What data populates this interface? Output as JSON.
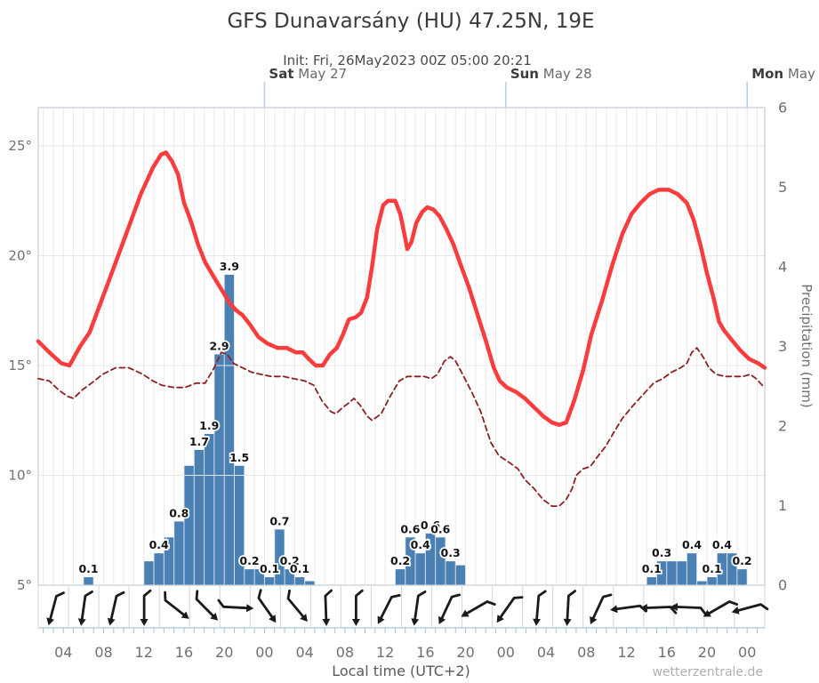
{
  "title": "GFS Dunavarsány (HU) 47.25N, 19E",
  "subtitle": "Init: Fri, 26May2023 00Z 05:00 20:21",
  "watermark": "wetterzentrale.de",
  "x_axis_label": "Local time (UTC+2)",
  "y_right_label": "Precipitation (mm)",
  "colors": {
    "temperature": "#fa3c3c",
    "dewpoint": "#8b2020",
    "precip_bar": "#4a81b4",
    "grid": "#e8e8e8",
    "frame": "#c5ccd6",
    "day_line": "#b9cfe8",
    "axis_line": "#b9cfe8",
    "hour_tick": "#aebfd4",
    "strip_sep": "#cfd6de",
    "wind_arrow": "#1a1a1a"
  },
  "day_markers": [
    {
      "t": 24,
      "day": "Sat",
      "date": " May 27"
    },
    {
      "t": 48,
      "day": "Sun",
      "date": " May 28"
    },
    {
      "t": 72,
      "day": "Mon",
      "date": " May"
    }
  ],
  "x_ticks": [
    {
      "t": 4,
      "label": "04"
    },
    {
      "t": 8,
      "label": "08"
    },
    {
      "t": 12,
      "label": "12"
    },
    {
      "t": 16,
      "label": "16"
    },
    {
      "t": 20,
      "label": "20"
    },
    {
      "t": 24,
      "label": "00"
    },
    {
      "t": 28,
      "label": "04"
    },
    {
      "t": 32,
      "label": "08"
    },
    {
      "t": 36,
      "label": "12"
    },
    {
      "t": 40,
      "label": "16"
    },
    {
      "t": 44,
      "label": "20"
    },
    {
      "t": 48,
      "label": "00"
    },
    {
      "t": 52,
      "label": "04"
    },
    {
      "t": 56,
      "label": "08"
    },
    {
      "t": 60,
      "label": "12"
    },
    {
      "t": 64,
      "label": "16"
    },
    {
      "t": 68,
      "label": "20"
    },
    {
      "t": 72,
      "label": "00"
    }
  ],
  "y_left_ticks": [
    {
      "v": 25,
      "label": "25°"
    },
    {
      "v": 20,
      "label": "20°"
    },
    {
      "v": 15,
      "label": "15°"
    },
    {
      "v": 10,
      "label": "10°"
    },
    {
      "v": 5,
      "label": "5°"
    }
  ],
  "y_right_ticks": [
    {
      "v": 6,
      "label": "6"
    },
    {
      "v": 5,
      "label": "5"
    },
    {
      "v": 4,
      "label": "4"
    },
    {
      "v": 3,
      "label": "3"
    },
    {
      "v": 2,
      "label": "2"
    },
    {
      "v": 1,
      "label": "1"
    },
    {
      "v": 0,
      "label": "0"
    }
  ],
  "chart_data": {
    "type": "line+bar",
    "time_unit": "hours since Fri 26May2023 00:00 local (UTC+2)",
    "t_range": [
      1.5,
      73.75
    ],
    "temp_axis_range": [
      5,
      26.74
    ],
    "precip_axis_range": [
      0,
      6
    ],
    "grid_hours": 1,
    "temp_gridlines": [
      10,
      15,
      20,
      25
    ],
    "series": [
      {
        "name": "temperature",
        "style": "solid",
        "points": [
          [
            1.5,
            16.1
          ],
          [
            2.6,
            15.6
          ],
          [
            3.8,
            15.1
          ],
          [
            4.6,
            15.0
          ],
          [
            5.7,
            15.9
          ],
          [
            6.6,
            16.5
          ],
          [
            8.4,
            18.7
          ],
          [
            10.1,
            20.8
          ],
          [
            11.7,
            22.8
          ],
          [
            12.9,
            24.0
          ],
          [
            13.7,
            24.6
          ],
          [
            14.2,
            24.7
          ],
          [
            14.8,
            24.3
          ],
          [
            15.4,
            23.7
          ],
          [
            16.0,
            22.4
          ],
          [
            16.5,
            21.8
          ],
          [
            16.8,
            21.4
          ],
          [
            17.4,
            20.5
          ],
          [
            18.1,
            19.7
          ],
          [
            19.0,
            19.0
          ],
          [
            19.8,
            18.4
          ],
          [
            20.6,
            17.8
          ],
          [
            21.2,
            17.5
          ],
          [
            21.8,
            17.3
          ],
          [
            22.5,
            16.9
          ],
          [
            23.4,
            16.3
          ],
          [
            24.3,
            16.0
          ],
          [
            25.3,
            15.8
          ],
          [
            26.2,
            15.8
          ],
          [
            27.1,
            15.6
          ],
          [
            27.8,
            15.6
          ],
          [
            28.4,
            15.3
          ],
          [
            29.1,
            15.0
          ],
          [
            29.8,
            15.0
          ],
          [
            30.5,
            15.5
          ],
          [
            31.2,
            15.8
          ],
          [
            31.8,
            16.4
          ],
          [
            32.4,
            17.1
          ],
          [
            33.1,
            17.2
          ],
          [
            33.6,
            17.4
          ],
          [
            34.2,
            18.1
          ],
          [
            34.7,
            19.5
          ],
          [
            35.2,
            21.2
          ],
          [
            35.8,
            22.3
          ],
          [
            36.3,
            22.5
          ],
          [
            37.0,
            22.5
          ],
          [
            37.5,
            21.9
          ],
          [
            38.0,
            20.8
          ],
          [
            38.2,
            20.3
          ],
          [
            38.6,
            20.6
          ],
          [
            39.1,
            21.5
          ],
          [
            39.7,
            22.0
          ],
          [
            40.2,
            22.2
          ],
          [
            40.8,
            22.1
          ],
          [
            41.4,
            21.8
          ],
          [
            42.1,
            21.2
          ],
          [
            42.8,
            20.5
          ],
          [
            43.5,
            19.6
          ],
          [
            44.3,
            18.6
          ],
          [
            45.2,
            17.3
          ],
          [
            46.1,
            16.0
          ],
          [
            46.8,
            14.9
          ],
          [
            47.4,
            14.3
          ],
          [
            48.1,
            14.0
          ],
          [
            49.0,
            13.8
          ],
          [
            49.9,
            13.5
          ],
          [
            50.8,
            13.1
          ],
          [
            51.7,
            12.7
          ],
          [
            52.6,
            12.4
          ],
          [
            53.3,
            12.3
          ],
          [
            54.0,
            12.4
          ],
          [
            54.8,
            13.4
          ],
          [
            55.7,
            14.8
          ],
          [
            56.5,
            16.4
          ],
          [
            57.6,
            18.0
          ],
          [
            58.6,
            19.6
          ],
          [
            59.6,
            21.0
          ],
          [
            60.5,
            21.9
          ],
          [
            61.4,
            22.4
          ],
          [
            62.3,
            22.8
          ],
          [
            63.2,
            23.0
          ],
          [
            64.2,
            23.0
          ],
          [
            65.1,
            22.8
          ],
          [
            66.0,
            22.4
          ],
          [
            66.7,
            21.6
          ],
          [
            67.4,
            20.4
          ],
          [
            68.0,
            19.2
          ],
          [
            68.7,
            18.0
          ],
          [
            69.2,
            17.0
          ],
          [
            69.7,
            16.6
          ],
          [
            70.4,
            16.2
          ],
          [
            71.3,
            15.7
          ],
          [
            72.2,
            15.3
          ],
          [
            73.1,
            15.1
          ],
          [
            73.75,
            14.9
          ]
        ]
      },
      {
        "name": "dewpoint",
        "style": "dashed",
        "points": [
          [
            1.5,
            14.4
          ],
          [
            2.6,
            14.3
          ],
          [
            3.5,
            13.9
          ],
          [
            4.4,
            13.6
          ],
          [
            5.0,
            13.5
          ],
          [
            5.9,
            13.9
          ],
          [
            6.8,
            14.2
          ],
          [
            7.9,
            14.6
          ],
          [
            9.2,
            14.9
          ],
          [
            10.5,
            14.9
          ],
          [
            11.9,
            14.6
          ],
          [
            12.9,
            14.3
          ],
          [
            13.8,
            14.1
          ],
          [
            15.0,
            14.0
          ],
          [
            16.1,
            14.0
          ],
          [
            17.2,
            14.2
          ],
          [
            18.1,
            14.2
          ],
          [
            19.0,
            14.9
          ],
          [
            19.7,
            15.6
          ],
          [
            20.3,
            15.5
          ],
          [
            20.9,
            15.1
          ],
          [
            21.8,
            14.9
          ],
          [
            22.7,
            14.7
          ],
          [
            23.6,
            14.6
          ],
          [
            24.7,
            14.5
          ],
          [
            25.9,
            14.5
          ],
          [
            26.9,
            14.4
          ],
          [
            28.0,
            14.3
          ],
          [
            28.9,
            14.1
          ],
          [
            29.7,
            13.4
          ],
          [
            30.6,
            12.9
          ],
          [
            31.1,
            12.8
          ],
          [
            31.8,
            13.1
          ],
          [
            32.4,
            13.3
          ],
          [
            32.9,
            13.5
          ],
          [
            33.5,
            13.2
          ],
          [
            34.2,
            12.7
          ],
          [
            34.7,
            12.5
          ],
          [
            35.6,
            12.8
          ],
          [
            36.5,
            13.6
          ],
          [
            37.4,
            14.3
          ],
          [
            38.2,
            14.5
          ],
          [
            39.1,
            14.5
          ],
          [
            39.9,
            14.5
          ],
          [
            40.6,
            14.4
          ],
          [
            41.2,
            14.6
          ],
          [
            41.9,
            15.2
          ],
          [
            42.5,
            15.4
          ],
          [
            43.0,
            15.2
          ],
          [
            43.7,
            14.6
          ],
          [
            44.6,
            13.8
          ],
          [
            45.5,
            12.9
          ],
          [
            46.5,
            11.5
          ],
          [
            47.3,
            10.9
          ],
          [
            48.3,
            10.6
          ],
          [
            49.2,
            10.3
          ],
          [
            49.9,
            9.8
          ],
          [
            50.8,
            9.4
          ],
          [
            51.7,
            8.9
          ],
          [
            52.6,
            8.6
          ],
          [
            53.3,
            8.6
          ],
          [
            54.0,
            8.9
          ],
          [
            54.6,
            9.4
          ],
          [
            55.0,
            10.0
          ],
          [
            55.7,
            10.3
          ],
          [
            56.4,
            10.4
          ],
          [
            57.2,
            10.9
          ],
          [
            57.9,
            11.3
          ],
          [
            58.8,
            12.0
          ],
          [
            59.6,
            12.6
          ],
          [
            60.7,
            13.2
          ],
          [
            61.7,
            13.7
          ],
          [
            62.7,
            14.2
          ],
          [
            63.6,
            14.4
          ],
          [
            64.5,
            14.7
          ],
          [
            65.4,
            14.9
          ],
          [
            66.0,
            15.1
          ],
          [
            66.5,
            15.6
          ],
          [
            67.0,
            15.8
          ],
          [
            67.6,
            15.4
          ],
          [
            68.2,
            14.9
          ],
          [
            68.9,
            14.6
          ],
          [
            69.8,
            14.5
          ],
          [
            70.7,
            14.5
          ],
          [
            71.6,
            14.5
          ],
          [
            72.3,
            14.6
          ],
          [
            72.9,
            14.4
          ],
          [
            73.5,
            14.1
          ],
          [
            73.75,
            14.0
          ]
        ]
      }
    ],
    "precip_bars": [
      {
        "t": 6,
        "v": 0.1,
        "label": "0.1"
      },
      {
        "t": 12,
        "v": 0.3
      },
      {
        "t": 13,
        "v": 0.4,
        "label": "0.4"
      },
      {
        "t": 14,
        "v": 0.6
      },
      {
        "t": 15,
        "v": 0.8,
        "label": "0.8"
      },
      {
        "t": 16,
        "v": 1.5
      },
      {
        "t": 17,
        "v": 1.7,
        "label": "1.7"
      },
      {
        "t": 18,
        "v": 1.9,
        "label": "1.9"
      },
      {
        "t": 19,
        "v": 2.9,
        "label": "2.9"
      },
      {
        "t": 20,
        "v": 3.9,
        "label": "3.9"
      },
      {
        "t": 21,
        "v": 1.5,
        "label": "1.5"
      },
      {
        "t": 22,
        "v": 0.2,
        "label": "0.2"
      },
      {
        "t": 23,
        "v": 0.2
      },
      {
        "t": 24,
        "v": 0.1,
        "label": "0.1"
      },
      {
        "t": 25,
        "v": 0.7,
        "label": "0.7"
      },
      {
        "t": 26,
        "v": 0.2,
        "label": "0.2"
      },
      {
        "t": 27,
        "v": 0.1,
        "label": "0.1"
      },
      {
        "t": 28,
        "v": 0.05
      },
      {
        "t": 37,
        "v": 0.2,
        "label": "0.2"
      },
      {
        "t": 38,
        "v": 0.6,
        "label": "0.6"
      },
      {
        "t": 39,
        "v": 0.4,
        "label": "0.4"
      },
      {
        "t": 40,
        "v": 0.65,
        "label": "0.6"
      },
      {
        "t": 41,
        "v": 0.6,
        "label": "0.6"
      },
      {
        "t": 42,
        "v": 0.3,
        "label": "0.3"
      },
      {
        "t": 43,
        "v": 0.25
      },
      {
        "t": 62,
        "v": 0.1,
        "label": "0.1"
      },
      {
        "t": 63,
        "v": 0.3,
        "label": "0.3"
      },
      {
        "t": 64,
        "v": 0.3
      },
      {
        "t": 65,
        "v": 0.3
      },
      {
        "t": 66,
        "v": 0.4,
        "label": "0.4"
      },
      {
        "t": 67,
        "v": 0.05
      },
      {
        "t": 68,
        "v": 0.1,
        "label": "0.1"
      },
      {
        "t": 69,
        "v": 0.4,
        "label": "0.4"
      },
      {
        "t": 70,
        "v": 0.4
      },
      {
        "t": 71,
        "v": 0.2,
        "label": "0.2"
      }
    ],
    "wind_arrows_deg": [
      195,
      188,
      193,
      180,
      128,
      135,
      93,
      145,
      140,
      178,
      180,
      207,
      188,
      205,
      240,
      215,
      185,
      183,
      205,
      262,
      268,
      272,
      240,
      255
    ]
  }
}
